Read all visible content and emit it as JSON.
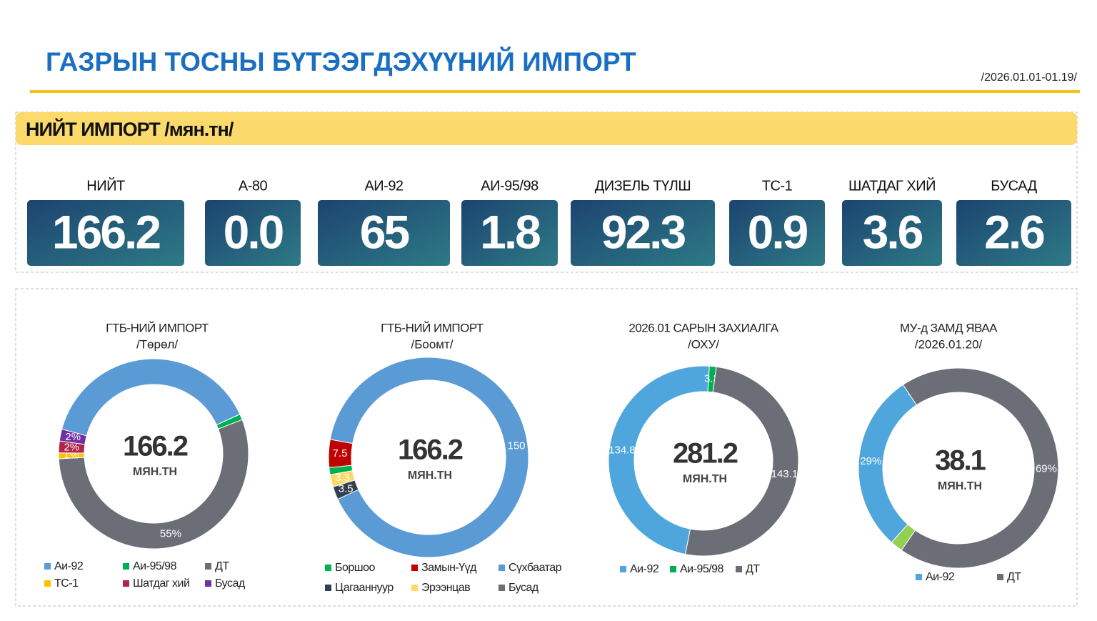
{
  "header": {
    "title": "ГАЗРЫН ТОСНЫ БҮТЭЭГДЭХҮҮНИЙ ИМПОРТ",
    "period": "/2026.01.01-01.19/",
    "section": "НИЙТ ИМПОРТ /мян.тн/"
  },
  "kpis": [
    {
      "label": "НИЙТ",
      "value": "166.2"
    },
    {
      "label": "А-80",
      "value": "0.0"
    },
    {
      "label": "АИ-92",
      "value": "65"
    },
    {
      "label": "АИ-95/98",
      "value": "1.8"
    },
    {
      "label": "ДИЗЕЛЬ ТҮЛШ",
      "value": "92.3"
    },
    {
      "label": "ТС-1",
      "value": "0.9"
    },
    {
      "label": "ШАТДАГ ХИЙ",
      "value": "3.6"
    },
    {
      "label": "БУСАД",
      "value": "2.6"
    }
  ],
  "chart_data": [
    {
      "type": "donut",
      "title": "ГТБ-НИЙ ИМПОРТ",
      "subtitle": "/Төрөл/",
      "center_text": "166.2",
      "center_unit": "МЯН.ТН",
      "categories": [
        "Аи-92",
        "Аи-95/98",
        "ДТ",
        "ТС-1",
        "Шатдаг хий",
        "Бусад"
      ],
      "values": [
        39,
        1,
        55,
        1,
        2,
        2
      ],
      "value_labels": [
        null,
        null,
        "55%",
        "1%",
        "2%",
        "2%"
      ],
      "colors": [
        "#5b9bd5",
        "#00b050",
        "#6b6e76",
        "#ffc000",
        "#b0234a",
        "#7030a0"
      ]
    },
    {
      "type": "donut",
      "title": "ГТБ-НИЙ ИМПОРТ",
      "subtitle": "/Боомт/",
      "center_text": "166.2",
      "center_unit": "МЯН.ТН",
      "categories": [
        "Боршоо",
        "Замын-Үүд",
        "Сүхбаатар",
        "Цагааннуур",
        "Эрээнцав",
        "Бусад"
      ],
      "values": [
        1.9,
        7.5,
        150,
        3.5,
        3.3,
        0
      ],
      "value_labels": [
        null,
        "7.5",
        "150",
        "3.5",
        "3.3",
        null
      ],
      "colors": [
        "#00b050",
        "#c00000",
        "#5b9bd5",
        "#333f50",
        "#ffd966",
        "#6b6e76"
      ]
    },
    {
      "type": "donut",
      "title": "2026.01 САРЫН ЗАХИАЛГА",
      "subtitle": "/ОХУ/",
      "center_text": "281.2",
      "center_unit": "МЯН.ТН",
      "categories": [
        "Аи-92",
        "Аи-95/98",
        "ДТ"
      ],
      "values": [
        134.8,
        3.3,
        143.1
      ],
      "colors": [
        "#4ea6dc",
        "#00b050",
        "#6b6e76"
      ]
    },
    {
      "type": "donut",
      "title": "МУ-д ЗАМД ЯВАА",
      "subtitle": "/2026.01.20/",
      "center_text": "38.1",
      "center_unit": "МЯН.ТН",
      "categories": [
        "Аи-92",
        null,
        "ДТ",
        null
      ],
      "values": [
        29,
        0,
        69,
        2
      ],
      "value_labels": [
        "29%",
        "-",
        "69%",
        null
      ],
      "colors": [
        "#4ea6dc",
        "#6b6e76",
        "#6b6e76",
        "#92d050"
      ]
    }
  ]
}
